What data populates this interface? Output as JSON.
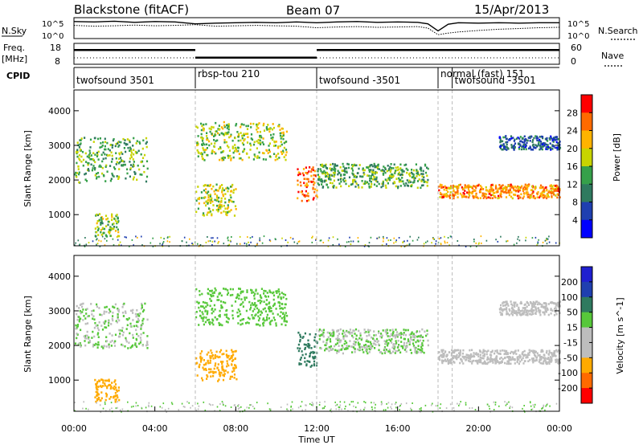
{
  "header": {
    "station": "Blackstone (fitACF)",
    "beam": "Beam 07",
    "date": "15/Apr/2013"
  },
  "chart_data": [
    {
      "type": "line",
      "name_label": "N.Sky",
      "right_label": "N.Search",
      "yticks_left": [
        "10^5",
        "10^0"
      ],
      "yticks_right": [
        "10^5",
        "10^0"
      ],
      "x": [
        0,
        1,
        2,
        3,
        4,
        5,
        6,
        7,
        8,
        9,
        10,
        11,
        12,
        13,
        14,
        15,
        16,
        17,
        17.5,
        18,
        18.5,
        19,
        20,
        21,
        22,
        23,
        24
      ],
      "series": [
        {
          "values": [
            4.2,
            4.1,
            4.3,
            4.0,
            4.2,
            4.1,
            3.6,
            3.8,
            3.9,
            4.0,
            3.9,
            4.1,
            3.9,
            4.1,
            4.2,
            4.0,
            4.1,
            4.0,
            3.6,
            1.8,
            3.5,
            3.9,
            3.8,
            3.9,
            3.8,
            3.9,
            3.9
          ]
        },
        {
          "values": [
            3.2,
            3.0,
            3.1,
            3.3,
            3.1,
            3.2,
            3.4,
            3.0,
            3.1,
            3.2,
            3.1,
            3.0,
            2.6,
            2.8,
            2.9,
            2.7,
            2.8,
            2.9,
            2.5,
            0.8,
            1.2,
            1.5,
            1.9,
            2.2,
            2.4,
            2.6,
            2.7
          ]
        }
      ]
    },
    {
      "type": "line",
      "name_label_1": "Freq.",
      "name_label_2": "[MHz]",
      "right_label": "Nave",
      "yticks_left": [
        "18",
        "8"
      ],
      "yticks_right": [
        "60",
        "0"
      ],
      "segments": [
        {
          "x0": 0,
          "x1": 6,
          "freq": 15
        },
        {
          "x0": 6,
          "x1": 12,
          "freq": 11
        },
        {
          "x0": 12,
          "x1": 24,
          "freq": 15
        }
      ]
    },
    {
      "type": "table",
      "label": "CPID",
      "programs": [
        {
          "start": 0,
          "name": "twofsound 3501"
        },
        {
          "start": 6,
          "name": "rbsp-tou 210"
        },
        {
          "start": 12,
          "name": "twofsound -3501"
        },
        {
          "start": 18,
          "name": "normal (fast) 151"
        },
        {
          "start": 18.7,
          "name": "twofsound -3501"
        }
      ]
    },
    {
      "type": "heatmap",
      "ylabel": "Slant Range [km]",
      "ylim": [
        100,
        4600
      ],
      "yticks": [
        1000,
        2000,
        3000,
        4000
      ],
      "colorbar_label": "Power [dB]",
      "colorbar_ticks": [
        4,
        8,
        12,
        16,
        20,
        24,
        28
      ],
      "colorbar_range": [
        0,
        32
      ],
      "features": [
        {
          "t0": 0.0,
          "t1": 3.6,
          "r0": 1950,
          "r1": 3250,
          "level": 14
        },
        {
          "t0": 1.0,
          "t1": 2.2,
          "r0": 400,
          "r1": 1050,
          "level": 16
        },
        {
          "t0": 6.0,
          "t1": 10.5,
          "r0": 2600,
          "r1": 3700,
          "level": 17
        },
        {
          "t0": 6.0,
          "t1": 8.0,
          "r0": 1000,
          "r1": 1900,
          "level": 18
        },
        {
          "t0": 11.0,
          "t1": 12.0,
          "r0": 1400,
          "r1": 2400,
          "level": 26
        },
        {
          "t0": 12.0,
          "t1": 17.5,
          "r0": 1800,
          "r1": 2500,
          "level": 14
        },
        {
          "t0": 18.0,
          "t1": 24.0,
          "r0": 1500,
          "r1": 1900,
          "level": 24
        },
        {
          "t0": 21.0,
          "t1": 24.0,
          "r0": 2900,
          "r1": 3300,
          "level": 8
        }
      ]
    },
    {
      "type": "heatmap",
      "ylabel": "Slant Range [km]",
      "xlabel": "Time UT",
      "ylim": [
        100,
        4600
      ],
      "yticks": [
        1000,
        2000,
        3000,
        4000
      ],
      "xticks": [
        "00:00",
        "04:00",
        "08:00",
        "12:00",
        "16:00",
        "20:00",
        "00:00"
      ],
      "xlim": [
        0,
        24
      ],
      "colorbar_label": "Velocity [m s^-1]",
      "colorbar_ticks": [
        200,
        100,
        50,
        15,
        -15,
        -50,
        -100,
        -200
      ],
      "features": [
        {
          "t0": 0.0,
          "t1": 3.6,
          "r0": 1950,
          "r1": 3250,
          "level": 0
        },
        {
          "t0": 1.0,
          "t1": 2.2,
          "r0": 400,
          "r1": 1050,
          "level": -60
        },
        {
          "t0": 6.0,
          "t1": 10.5,
          "r0": 2600,
          "r1": 3700,
          "level": 5
        },
        {
          "t0": 6.0,
          "t1": 8.0,
          "r0": 1000,
          "r1": 1900,
          "level": -70
        },
        {
          "t0": 11.0,
          "t1": 12.0,
          "r0": 1400,
          "r1": 2400,
          "level": 30
        },
        {
          "t0": 12.0,
          "t1": 17.5,
          "r0": 1800,
          "r1": 2500,
          "level": 0
        },
        {
          "t0": 18.0,
          "t1": 24.0,
          "r0": 1500,
          "r1": 1900,
          "level": -5
        },
        {
          "t0": 21.0,
          "t1": 24.0,
          "r0": 2900,
          "r1": 3300,
          "level": -20
        }
      ]
    }
  ],
  "colors": {
    "power_scale": [
      "#0000ff",
      "#1f3fb0",
      "#2f7a5f",
      "#36a04a",
      "#c8d400",
      "#ffb300",
      "#ff6a00",
      "#ff0000"
    ],
    "velocity_scale": [
      "#ff0000",
      "#ff6a00",
      "#ffaa00",
      "#bdbdbd",
      "#bdbdbd",
      "#57c83a",
      "#2f7a5f",
      "#1f3fb0",
      "#1f1fd0"
    ]
  }
}
